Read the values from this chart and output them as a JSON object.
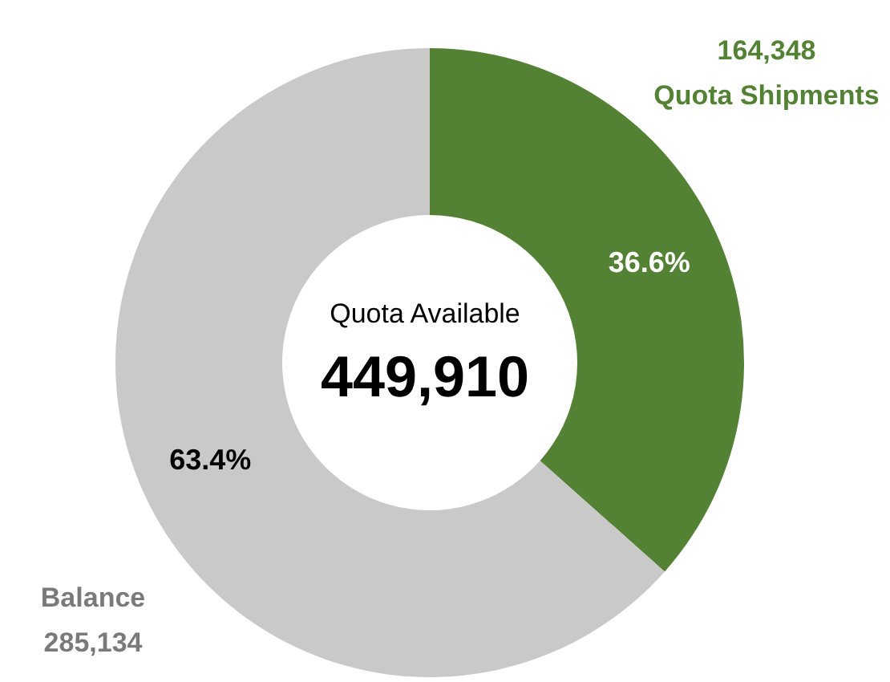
{
  "chart_data": {
    "type": "donut",
    "categories": [
      "Quota Shipments",
      "Balance"
    ],
    "values": [
      164348,
      285134
    ],
    "colors": [
      "#548235",
      "#c9c9c9"
    ],
    "value_labels": [
      "164,348",
      "285,134"
    ],
    "annotations": [
      "Quota Available",
      "449,910",
      {
        "text": "36.6%",
        "x": "Quota Shipments"
      },
      {
        "text": "63.4%",
        "x": "Balance"
      }
    ]
  }
}
